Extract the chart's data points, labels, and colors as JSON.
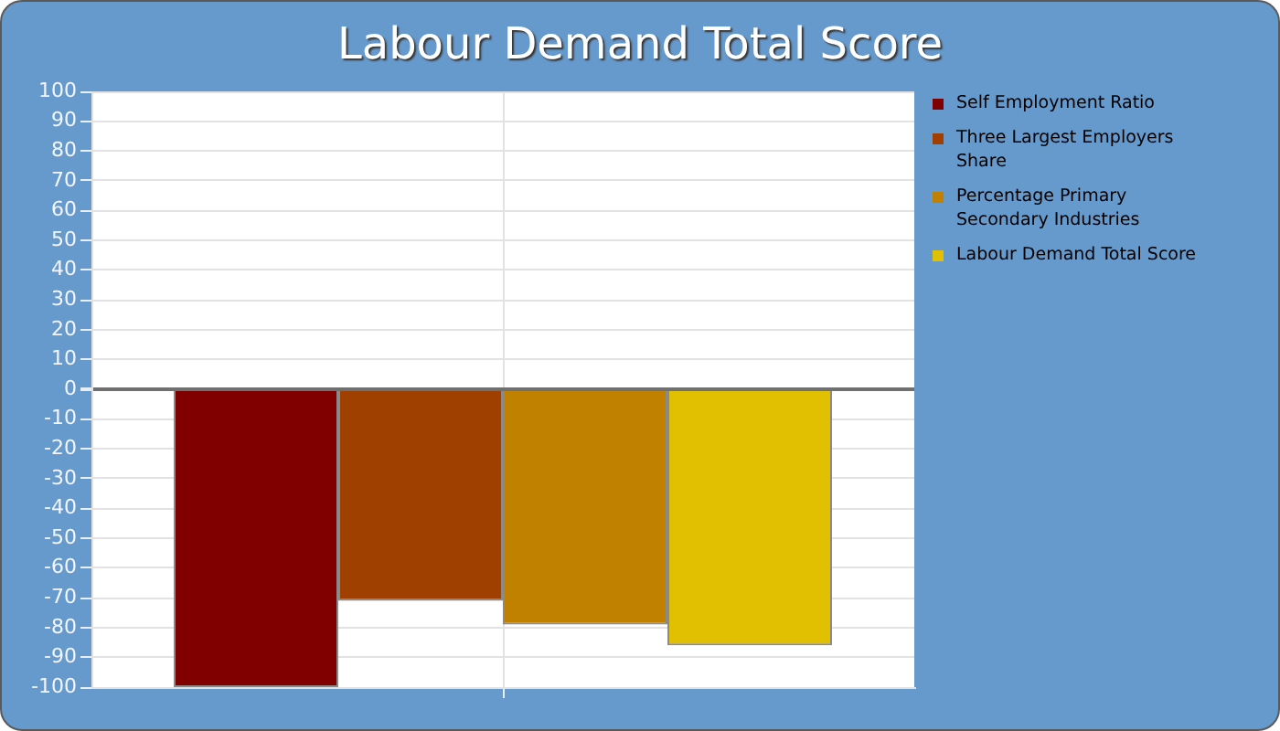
{
  "chart_data": {
    "type": "bar",
    "title": "Labour Demand Total Score",
    "categories": [
      null
    ],
    "series": [
      {
        "name": "Self Employment Ratio",
        "color": "#800000",
        "values": [
          -100
        ]
      },
      {
        "name": "Three Largest Employers Share",
        "color": "#a04000",
        "values": [
          -71
        ]
      },
      {
        "name": "Percentage Primary Secondary Industries",
        "color": "#c08000",
        "values": [
          -79
        ]
      },
      {
        "name": "Labour Demand Total Score",
        "color": "#e0c000",
        "values": [
          -86
        ]
      }
    ],
    "ylim": [
      -100,
      100
    ],
    "yticks": [
      -100,
      -90,
      -80,
      -70,
      -60,
      -50,
      -40,
      -30,
      -20,
      -10,
      0,
      10,
      20,
      30,
      40,
      50,
      60,
      70,
      80,
      90,
      100
    ],
    "grid": true,
    "legend": "right"
  }
}
